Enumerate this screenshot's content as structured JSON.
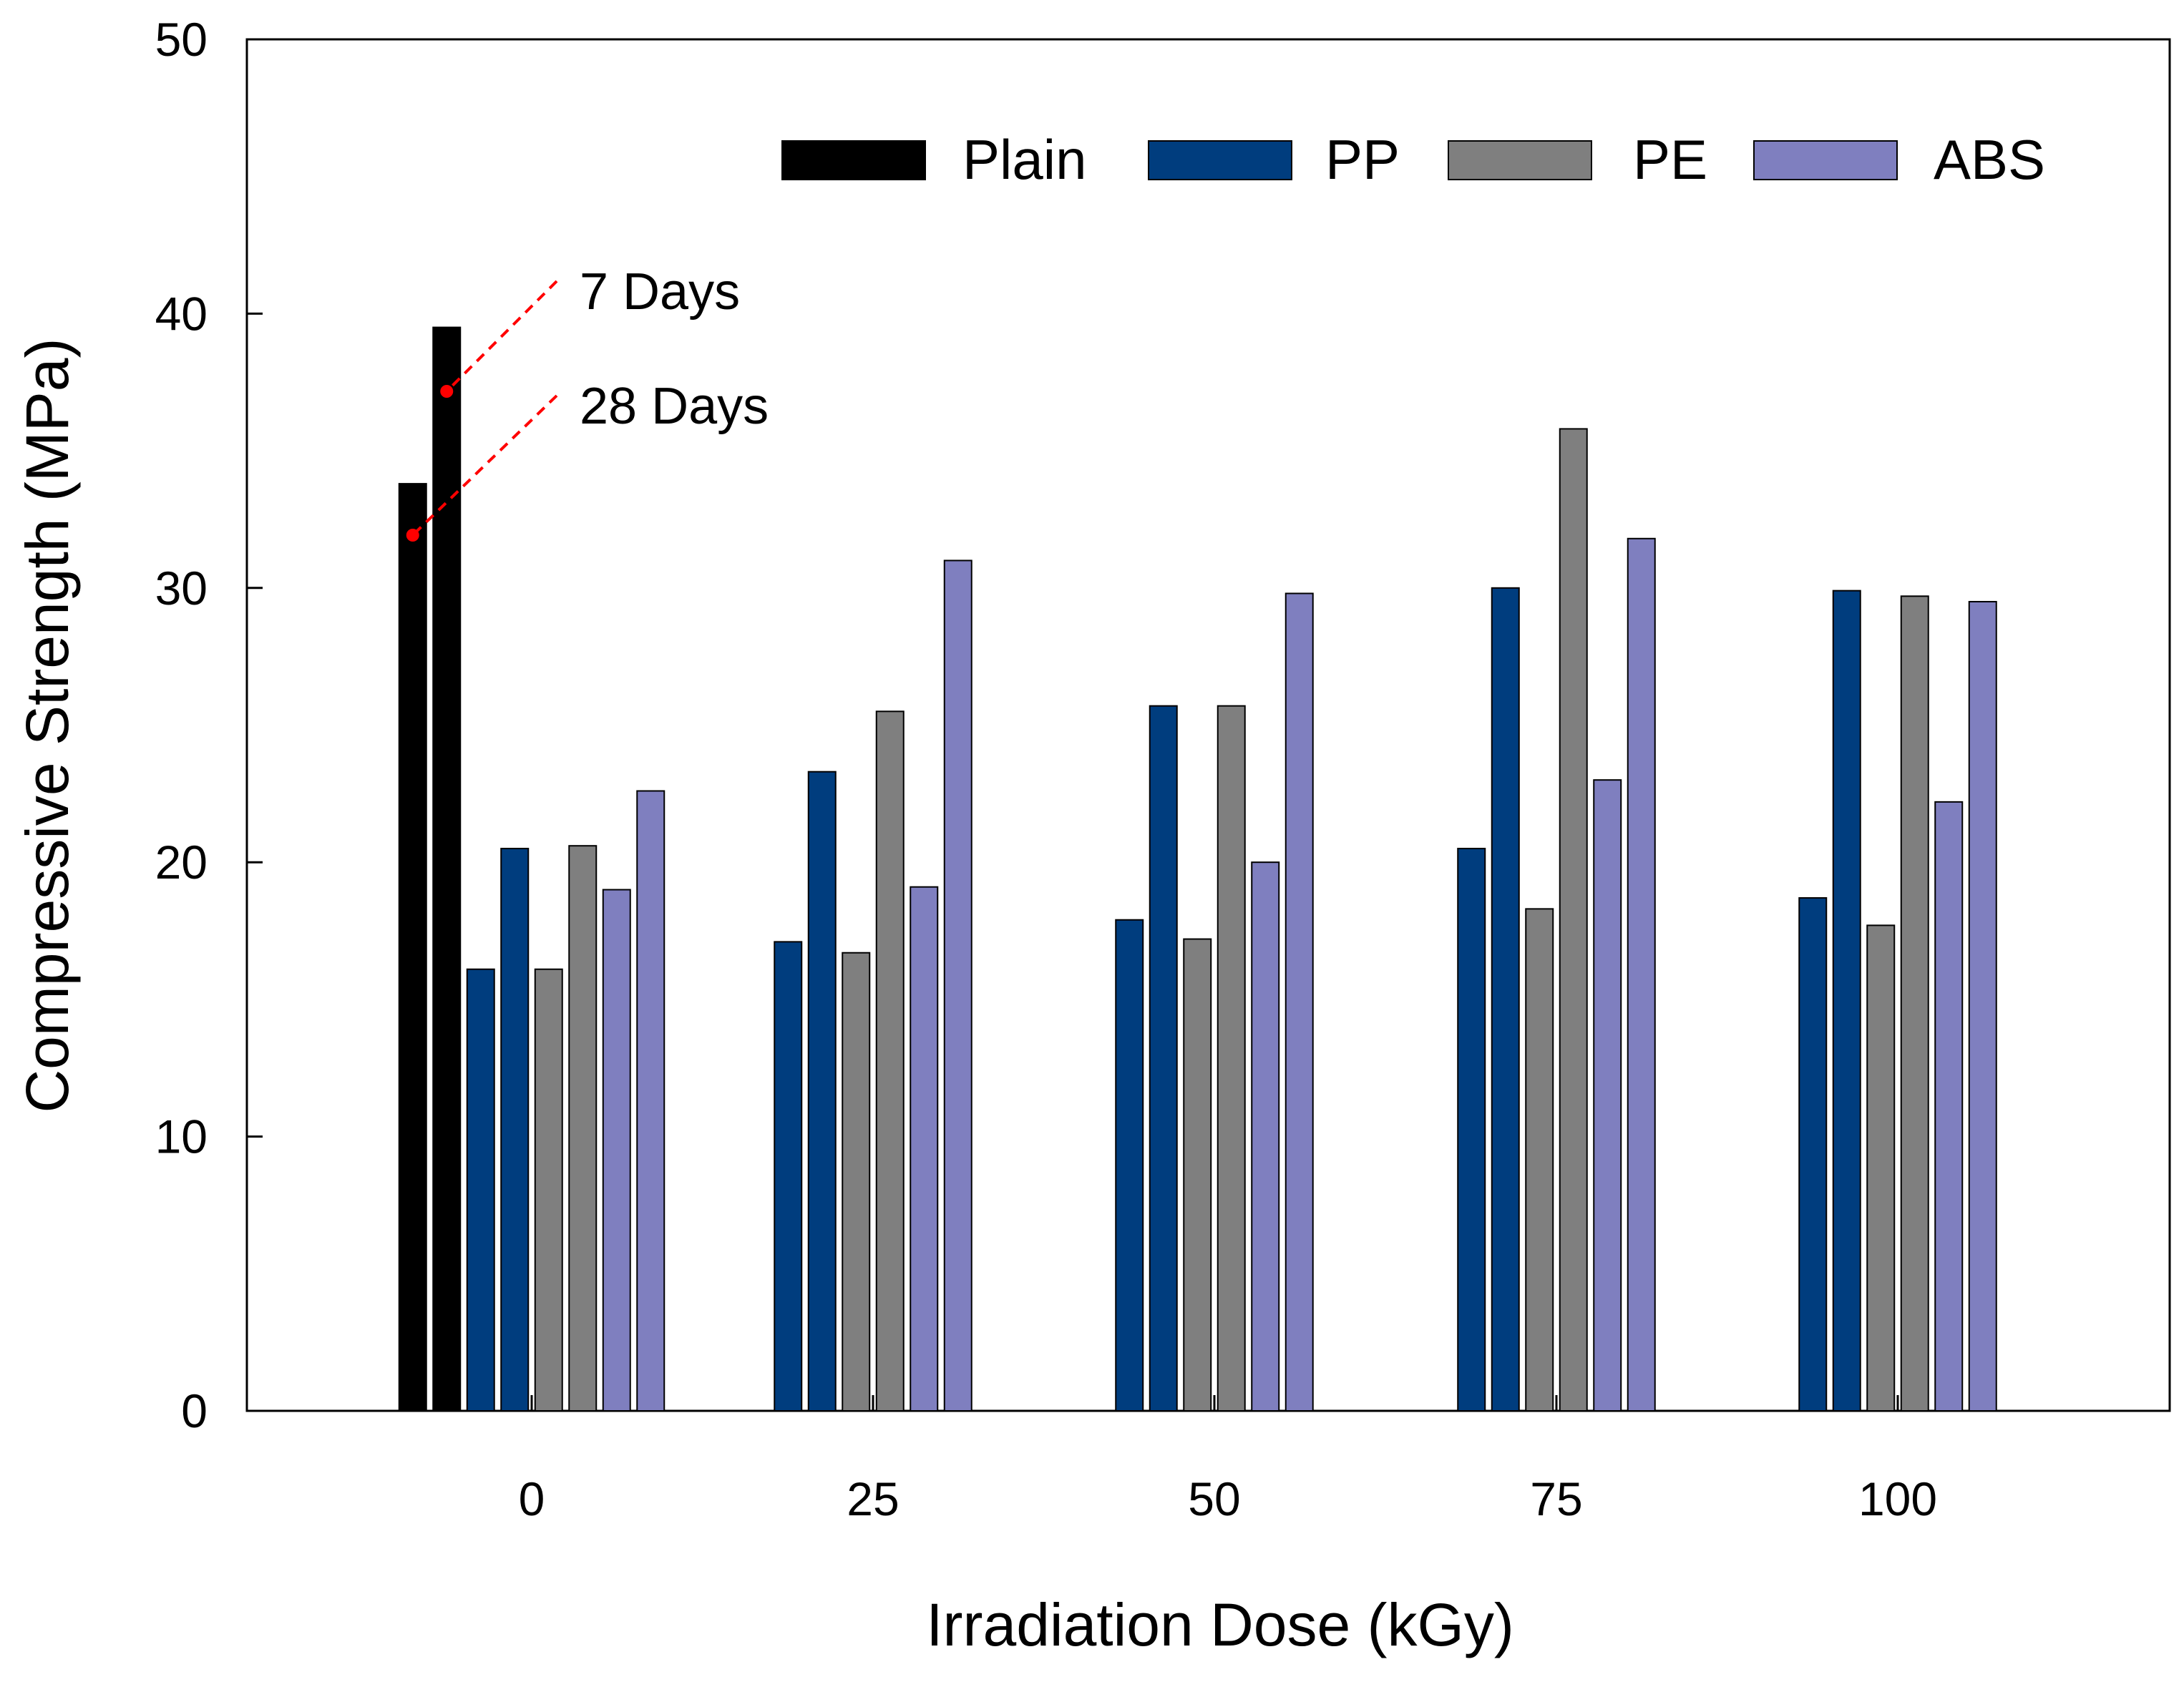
{
  "chart_data": {
    "type": "bar",
    "title": "",
    "xlabel": "Irradiation Dose (kGy)",
    "ylabel": "Compressive Strength (MPa)",
    "ylim": [
      0,
      50
    ],
    "yticks": [
      0,
      10,
      20,
      30,
      40,
      50
    ],
    "categories": [
      "0",
      "25",
      "50",
      "75",
      "100"
    ],
    "legend_position": "top-right",
    "series": [
      {
        "name": "Plain",
        "color": "#000000",
        "values": [
          [
            33.8,
            39.5
          ],
          null,
          null,
          null,
          null
        ]
      },
      {
        "name": "PP",
        "color": "#003D7E",
        "values": [
          [
            16.1,
            20.5
          ],
          [
            17.1,
            23.3
          ],
          [
            17.9,
            25.7
          ],
          [
            20.5,
            30.0
          ],
          [
            18.7,
            29.9
          ]
        ]
      },
      {
        "name": "PE",
        "color": "#7F7F7F",
        "values": [
          [
            16.1,
            20.6
          ],
          [
            16.7,
            25.5
          ],
          [
            17.2,
            25.7
          ],
          [
            18.3,
            35.8
          ],
          [
            17.7,
            29.7
          ]
        ]
      },
      {
        "name": "ABS",
        "color": "#7F7FBF",
        "values": [
          [
            19.0,
            22.6
          ],
          [
            19.1,
            31.0
          ],
          [
            20.0,
            29.8
          ],
          [
            23.0,
            31.8
          ],
          [
            22.2,
            29.5
          ]
        ]
      }
    ],
    "annotations": [
      {
        "text": "7 Days",
        "points_to": "Plain 7-day bar"
      },
      {
        "text": "28 Days",
        "points_to": "Plain 28-day bar"
      }
    ]
  }
}
